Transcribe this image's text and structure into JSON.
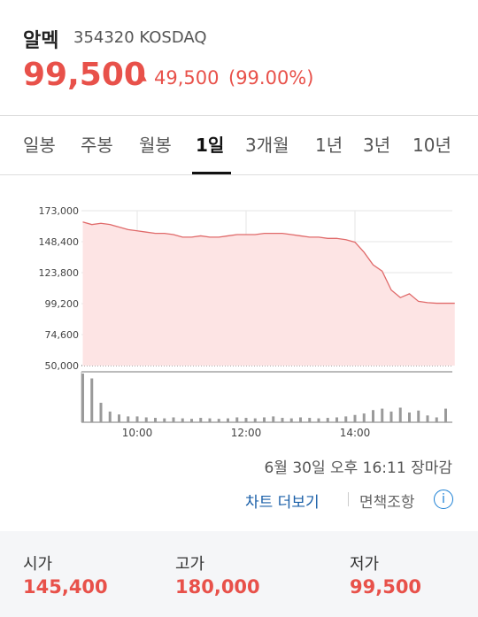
{
  "header": {
    "name": "알멕",
    "code": "354320 KOSDAQ",
    "price": "99,500",
    "change": "49,500",
    "change_rate": "(99.00%)"
  },
  "tabs": [
    {
      "label": "일봉",
      "active": false
    },
    {
      "label": "주봉",
      "active": false
    },
    {
      "label": "월봉",
      "active": false
    },
    {
      "label": "1일",
      "active": true
    },
    {
      "label": "3개월",
      "active": false
    },
    {
      "label": "1년",
      "active": false
    },
    {
      "label": "3년",
      "active": false
    },
    {
      "label": "10년",
      "active": false
    }
  ],
  "chart_data": {
    "type": "line",
    "categories": [
      null,
      null,
      null,
      null,
      null,
      null,
      "10:00",
      null,
      null,
      null,
      null,
      null,
      null,
      null,
      null,
      null,
      null,
      null,
      "12:00",
      null,
      null,
      null,
      null,
      null,
      null,
      null,
      null,
      null,
      null,
      null,
      "14:00",
      null,
      null,
      null,
      null,
      null,
      null,
      null,
      null,
      null,
      null,
      null
    ],
    "series": [
      {
        "color": "#e06a6a",
        "values": [
          164000,
          162000,
          163000,
          162000,
          160000,
          158000,
          157000,
          156000,
          155000,
          155000,
          154000,
          152000,
          152000,
          153000,
          152000,
          152000,
          153000,
          154000,
          154000,
          154000,
          155000,
          155000,
          155000,
          154000,
          153000,
          152000,
          152000,
          151000,
          151000,
          150000,
          148000,
          140000,
          130000,
          125000,
          110000,
          104000,
          107000,
          101000,
          100000,
          99500,
          99500,
          99500
        ]
      },
      {
        "color": "#9a9a9a",
        "axis": "y2",
        "values": [
          100,
          90,
          40,
          22,
          16,
          12,
          12,
          10,
          9,
          8,
          10,
          8,
          7,
          9,
          8,
          7,
          8,
          10,
          9,
          8,
          10,
          12,
          9,
          8,
          10,
          9,
          8,
          9,
          10,
          12,
          15,
          18,
          25,
          28,
          22,
          30,
          20,
          24,
          14,
          10,
          28,
          0
        ]
      }
    ],
    "ylim": [
      50000,
      173000
    ],
    "yticks": [
      {
        "value": 173000,
        "label": "173,000"
      },
      {
        "value": 148400,
        "label": "148,400"
      },
      {
        "value": 123800,
        "label": "123,800"
      },
      {
        "value": 99200,
        "label": "99,200"
      },
      {
        "value": 74600,
        "label": "74,600"
      },
      {
        "value": 50000,
        "label": "50,000"
      }
    ],
    "y2lim": [
      0,
      100
    ],
    "grid": true,
    "area_color": "#fde4e4"
  },
  "status": "6월 30일 오후 16:11 장마감",
  "links": {
    "more_chart": "차트 더보기",
    "disclaimer": "면책조항"
  },
  "summary": [
    {
      "label": "시가",
      "value": "145,400"
    },
    {
      "label": "고가",
      "value": "180,000"
    },
    {
      "label": "저가",
      "value": "99,500"
    }
  ]
}
